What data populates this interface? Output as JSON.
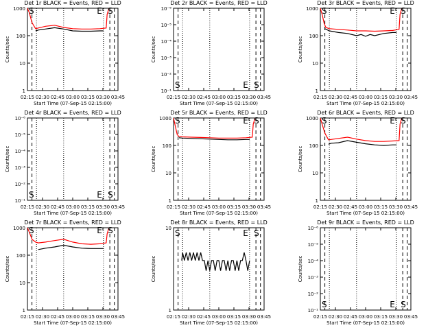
{
  "figure": {
    "x_tick_labels": [
      "02:15",
      "02:30",
      "02:45",
      "03:00",
      "03:15",
      "03:30",
      "03:45"
    ],
    "xlabel": "Start Time (07-Sep-15 02:15:00)",
    "ylabel": "Counts/sec",
    "colors": {
      "events": "#000000",
      "lld": "#ff0000"
    }
  },
  "chart_data": [
    {
      "type": "line",
      "title": "Det 1r BLACK = Events, RED = LLD",
      "scale": "log",
      "ylim": [
        1,
        1000
      ],
      "y_tick_labels": [
        "1",
        "10",
        "100",
        "1000"
      ],
      "x_range_min": [
        0,
        100
      ],
      "markers": {
        "E": 84,
        "S": 91
      },
      "series": [
        {
          "name": "Events",
          "x": [
            9,
            12,
            20,
            30,
            40,
            50,
            60,
            70,
            80,
            84
          ],
          "y": [
            150,
            160,
            175,
            195,
            175,
            150,
            145,
            145,
            150,
            150
          ]
        },
        {
          "name": "LLD",
          "x": [
            0,
            2,
            5,
            9,
            12,
            20,
            30,
            40,
            50,
            60,
            70,
            80,
            87,
            88,
            90
          ],
          "y": [
            1000,
            700,
            300,
            180,
            190,
            220,
            240,
            200,
            180,
            175,
            175,
            180,
            190,
            600,
            1000
          ]
        }
      ]
    },
    {
      "type": "line",
      "title": "Det 2r BLACK = Events, RED = LLD",
      "scale": "none",
      "ylim": [
        0,
        1
      ],
      "y_tick_labels": [
        "10⁻¹",
        "10⁻²",
        "10⁻³",
        "10⁻⁴",
        "10⁻⁵",
        "10⁻⁶"
      ],
      "x_range_min": [
        0,
        100
      ],
      "markers": {
        "E": 84,
        "S": 91
      },
      "series": []
    },
    {
      "type": "line",
      "title": "Det 3r BLACK = Events, RED = LLD",
      "scale": "log",
      "ylim": [
        1,
        1000
      ],
      "y_tick_labels": [
        "1",
        "10",
        "100",
        "1000"
      ],
      "x_range_min": [
        0,
        100
      ],
      "markers": {
        "E": 84,
        "S": 91
      },
      "series": [
        {
          "name": "Events",
          "x": [
            5,
            10,
            20,
            30,
            40,
            45,
            50,
            55,
            60,
            70,
            80,
            84
          ],
          "y": [
            180,
            150,
            130,
            120,
            100,
            110,
            95,
            110,
            100,
            120,
            130,
            130
          ]
        },
        {
          "name": "LLD",
          "x": [
            0,
            2,
            4,
            6,
            10,
            20,
            30,
            40,
            50,
            60,
            70,
            80,
            87,
            88,
            90
          ],
          "y": [
            1000,
            600,
            300,
            200,
            180,
            170,
            160,
            150,
            150,
            145,
            150,
            155,
            170,
            600,
            1000
          ]
        }
      ]
    },
    {
      "type": "line",
      "title": "Det 4r BLACK = Events, RED = LLD",
      "scale": "none",
      "ylim": [
        0,
        1
      ],
      "y_tick_labels": [
        "10⁻¹",
        "10⁻²",
        "10⁻³",
        "10⁻⁴",
        "10⁻⁵",
        "10⁻⁶"
      ],
      "x_range_min": [
        0,
        100
      ],
      "markers": {
        "E": 84,
        "S": 91
      },
      "series": []
    },
    {
      "type": "line",
      "title": "Det 5r BLACK = Events, RED = LLD",
      "scale": "log",
      "ylim": [
        1,
        1000
      ],
      "y_tick_labels": [
        "1",
        "10",
        "100",
        "1000"
      ],
      "x_range_min": [
        0,
        100
      ],
      "markers": {
        "E": 84,
        "S": 91
      },
      "series": [
        {
          "name": "Events",
          "x": [
            6,
            10,
            20,
            30,
            40,
            50,
            60,
            70,
            80,
            84
          ],
          "y": [
            190,
            185,
            180,
            175,
            170,
            165,
            160,
            160,
            165,
            165
          ]
        },
        {
          "name": "LLD",
          "x": [
            0,
            2,
            4,
            6,
            10,
            20,
            30,
            40,
            50,
            60,
            70,
            80,
            87,
            88,
            90
          ],
          "y": [
            1000,
            500,
            250,
            210,
            205,
            200,
            195,
            190,
            185,
            185,
            185,
            190,
            200,
            600,
            1000
          ]
        }
      ]
    },
    {
      "type": "line",
      "title": "Det 6r BLACK = Events, RED = LLD",
      "scale": "log",
      "ylim": [
        1,
        1000
      ],
      "y_tick_labels": [
        "1",
        "10",
        "100",
        "1000"
      ],
      "x_range_min": [
        0,
        100
      ],
      "markers": {
        "E": 84,
        "S": 91
      },
      "series": [
        {
          "name": "Events",
          "x": [
            9,
            12,
            20,
            30,
            40,
            50,
            60,
            70,
            80,
            84
          ],
          "y": [
            110,
            120,
            125,
            150,
            130,
            115,
            105,
            100,
            105,
            105
          ]
        },
        {
          "name": "LLD",
          "x": [
            0,
            2,
            5,
            9,
            12,
            20,
            30,
            40,
            50,
            60,
            70,
            80,
            87,
            88,
            90
          ],
          "y": [
            1000,
            600,
            280,
            160,
            165,
            180,
            200,
            170,
            150,
            140,
            140,
            145,
            150,
            600,
            1000
          ]
        }
      ]
    },
    {
      "type": "line",
      "title": "Det 7r BLACK = Events, RED = LLD",
      "scale": "log",
      "ylim": [
        1,
        1000
      ],
      "y_tick_labels": [
        "1",
        "10",
        "100",
        "1000"
      ],
      "x_range_min": [
        0,
        100
      ],
      "markers": {
        "E": 84,
        "S": 91
      },
      "series": [
        {
          "name": "Events",
          "x": [
            12,
            20,
            30,
            40,
            50,
            60,
            70,
            80,
            84
          ],
          "y": [
            160,
            180,
            200,
            230,
            200,
            180,
            175,
            175,
            175
          ]
        },
        {
          "name": "LLD",
          "x": [
            0,
            2,
            5,
            9,
            12,
            20,
            30,
            40,
            50,
            60,
            70,
            80,
            87,
            88,
            90
          ],
          "y": [
            1000,
            700,
            380,
            300,
            280,
            300,
            340,
            380,
            300,
            260,
            250,
            260,
            280,
            600,
            1000
          ]
        }
      ]
    },
    {
      "type": "line",
      "title": "Det 8r BLACK = Events, RED = LLD",
      "scale": "log",
      "ylim": [
        1,
        10
      ],
      "y_tick_labels": [
        "1",
        "10"
      ],
      "x_range_min": [
        0,
        100
      ],
      "markers": {
        "E": 84,
        "S": 91
      },
      "series": [
        {
          "name": "Events",
          "x": [
            9,
            10,
            12,
            14,
            16,
            18,
            20,
            22,
            24,
            26,
            28,
            30,
            32,
            34,
            36,
            38,
            40,
            42,
            44,
            46,
            48,
            50,
            52,
            54,
            56,
            58,
            60,
            62,
            64,
            66,
            68,
            70,
            72,
            74,
            76,
            78,
            80,
            82,
            84
          ],
          "y": [
            4,
            5,
            4,
            5,
            4,
            5,
            4,
            5,
            4,
            5,
            4,
            5,
            4,
            4,
            3,
            4,
            3,
            4,
            4,
            3,
            4,
            4,
            3,
            4,
            4,
            3,
            4,
            3,
            4,
            4,
            3,
            4,
            3,
            4,
            4,
            5,
            4,
            3,
            4
          ]
        }
      ]
    },
    {
      "type": "line",
      "title": "Det 9r BLACK = Events, RED = LLD",
      "scale": "none",
      "ylim": [
        0,
        1
      ],
      "y_tick_labels": [
        "10⁻¹",
        "10⁻²",
        "10⁻³",
        "10⁻⁴",
        "10⁻⁵",
        "10⁻⁶"
      ],
      "x_range_min": [
        0,
        100
      ],
      "markers": {
        "E": 84,
        "S": 91
      },
      "series": []
    }
  ]
}
